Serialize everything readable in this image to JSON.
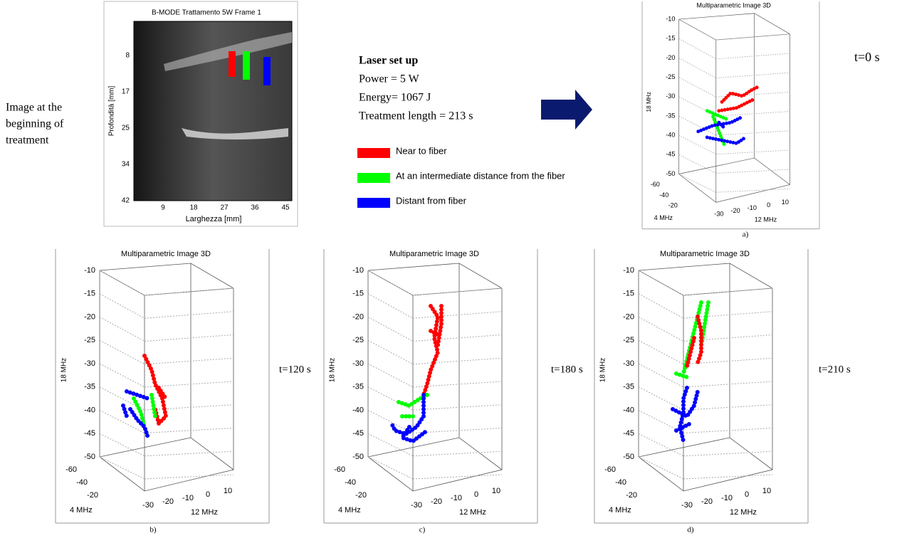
{
  "bmode": {
    "title": "B-MODE   Trattamento 5W Frame 1",
    "ylabel": "Profondità [mm]",
    "xlabel": "Larghezza [mm]",
    "yticks": [
      "8",
      "17",
      "25",
      "34",
      "42"
    ],
    "xticks": [
      "9",
      "18",
      "27",
      "36",
      "45"
    ]
  },
  "caption_left": [
    "Image at the",
    "beginning of",
    "treatment"
  ],
  "setup": {
    "title": "Laser set up",
    "lines": [
      "Power = 5 W",
      "Energy= 1067 J",
      "Treatment length =  213 s"
    ]
  },
  "legend": [
    {
      "label": "Near to fiber",
      "color": "#ff0000"
    },
    {
      "label": "At an intermediate distance from the fiber",
      "color": "#00ff00"
    },
    {
      "label": "Distant from fiber",
      "color": "#0000ff"
    }
  ],
  "plot_axes": {
    "zticks": [
      "-10",
      "-15",
      "-20",
      "-25",
      "-30",
      "-35",
      "-40",
      "-45",
      "-50"
    ],
    "xticks": [
      "-60",
      "-40",
      "-20"
    ],
    "yticks": [
      "-30",
      "-20",
      "-10",
      "0",
      "10"
    ],
    "zlabel": "18 MHz",
    "xlabel": "4 MHz",
    "ylabel": "12 MHz"
  },
  "plots": [
    {
      "title": "Multiparametric Image 3D",
      "time": "t=0 s",
      "caption": "a)"
    },
    {
      "title": "Multiparametric Image 3D",
      "time": "t=120 s",
      "caption": "b)"
    },
    {
      "title": "Multiparametric Image 3D",
      "time": "t=180 s",
      "caption": "c)"
    },
    {
      "title": "Multiparametric Image 3D",
      "time": "t=210 s",
      "caption": "d)"
    }
  ]
}
